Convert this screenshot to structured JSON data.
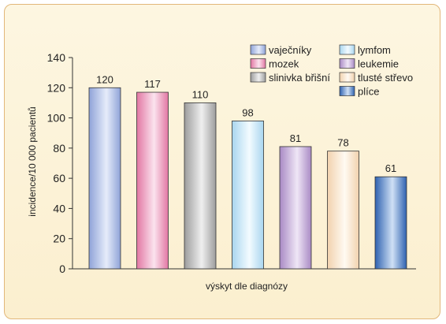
{
  "chart_data": {
    "type": "bar",
    "title": "",
    "xlabel": "výskyt dle diagnózy",
    "ylabel": "incidence/10 000 pacientů",
    "ylim": [
      0,
      140
    ],
    "yticks": [
      0,
      20,
      40,
      60,
      80,
      100,
      120,
      140
    ],
    "grid": false,
    "legend_position": "top-right",
    "categories": [
      "vaječníky",
      "mozek",
      "slinivka břišní",
      "lymfom",
      "leukemie",
      "tlusté střevo",
      "plíce"
    ],
    "values": [
      120,
      117,
      110,
      98,
      81,
      78,
      61
    ],
    "data_labels": [
      "120",
      "117",
      "110",
      "98",
      "81",
      "78",
      "61"
    ],
    "colors": {
      "vaječníky": [
        "#8fa3d8",
        "#e6ecfa"
      ],
      "mozek": [
        "#e277a3",
        "#fbe3ee"
      ],
      "slinivka břišní": [
        "#9d9d9d",
        "#efefef"
      ],
      "lymfom": [
        "#a9d6ef",
        "#f3fbff"
      ],
      "leukemie": [
        "#a98ac4",
        "#efe6f6"
      ],
      "tlusté střevo": [
        "#f2d2ae",
        "#fffaf2"
      ],
      "plíce": [
        "#2f62b0",
        "#cfe0f5"
      ]
    }
  }
}
